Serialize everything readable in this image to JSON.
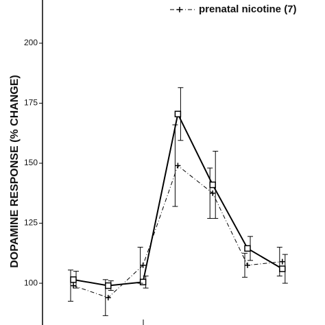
{
  "chart_data": {
    "type": "line",
    "y_label": "DOPAMINE RESPONSE (% CHANGE)",
    "categories": [
      null,
      null,
      null,
      null,
      null,
      null,
      null
    ],
    "ylim": [
      82.6,
      218
    ],
    "yticks": [
      100,
      125,
      150,
      175,
      200
    ],
    "series": [
      {
        "color": "#000000",
        "values": [
          101.5,
          99,
          100.5,
          170.5,
          141,
          114.5,
          106
        ],
        "errors": [
          3.5,
          2,
          2.5,
          11,
          14,
          5,
          6
        ]
      },
      {
        "name": "prenatal nicotine (7)",
        "color": "#000000",
        "values": [
          99,
          94,
          107.5,
          149,
          137.5,
          107.5,
          109
        ],
        "errors": [
          6.5,
          7.5,
          7.5,
          17,
          10.5,
          5,
          6
        ]
      }
    ]
  }
}
